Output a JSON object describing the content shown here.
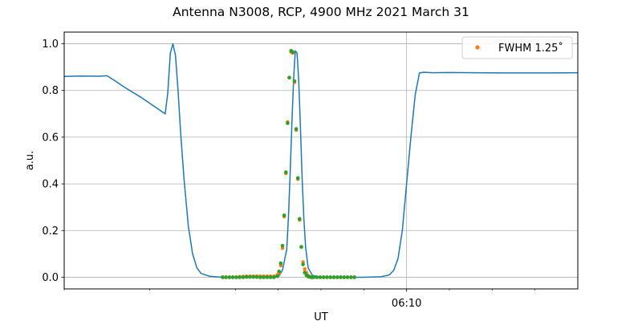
{
  "chart_data": {
    "type": "line",
    "title": "Antenna N3008, RCP, 4900 MHz 2021 March 31",
    "xlabel": "UT",
    "ylabel": "a.u.",
    "xlim": [
      0,
      600
    ],
    "ylim": [
      -0.05,
      1.05
    ],
    "x_unit": "seconds (UT)",
    "x_major_ticks": [
      {
        "value": 400,
        "label": "06:10"
      }
    ],
    "x_minor_ticks": [
      0,
      100,
      200,
      250,
      300,
      350,
      450,
      500,
      550
    ],
    "y_ticks": [
      0.0,
      0.2,
      0.4,
      0.6,
      0.8,
      1.0
    ],
    "y_tick_labels": [
      "0.0",
      "0.2",
      "0.4",
      "0.6",
      "0.8",
      "1.0"
    ],
    "grid": true,
    "legend_position": "top-right",
    "colors": {
      "line": "#1f77b4",
      "fit": "#ff7f0e",
      "samples": "#2ca02c"
    },
    "series": [
      {
        "kind": "line",
        "x": [
          0,
          20,
          40,
          50,
          60,
          70,
          80,
          90,
          100,
          110,
          118,
          121,
          124,
          127,
          130,
          133,
          136,
          140,
          145,
          150,
          155,
          160,
          170,
          180,
          195,
          220,
          250,
          255,
          260,
          262,
          264,
          266,
          268,
          270,
          272,
          274,
          276,
          278,
          280,
          282,
          285,
          290,
          300,
          320,
          350,
          370,
          380,
          385,
          390,
          395,
          400,
          405,
          410,
          415,
          420,
          430,
          450,
          480,
          510,
          540,
          570,
          600
        ],
        "y": [
          0.86,
          0.862,
          0.861,
          0.863,
          0.84,
          0.815,
          0.792,
          0.77,
          0.745,
          0.72,
          0.7,
          0.79,
          0.96,
          1.0,
          0.95,
          0.8,
          0.62,
          0.42,
          0.22,
          0.1,
          0.04,
          0.016,
          0.004,
          0.001,
          0.0,
          0.0,
          0.0,
          0.03,
          0.12,
          0.26,
          0.45,
          0.66,
          0.85,
          0.97,
          0.96,
          0.84,
          0.64,
          0.42,
          0.25,
          0.13,
          0.04,
          0.008,
          0.0,
          0.0,
          0.0,
          0.002,
          0.01,
          0.03,
          0.08,
          0.2,
          0.4,
          0.6,
          0.78,
          0.875,
          0.878,
          0.876,
          0.877,
          0.876,
          0.875,
          0.875,
          0.875,
          0.876
        ]
      },
      {
        "name": "FWHM 1.25$^\\circ$",
        "legend_label": "FWHM 1.25˚",
        "kind": "scatter",
        "x": [
          185,
          189,
          193,
          197,
          201,
          205,
          209,
          213,
          217,
          221,
          225,
          229,
          233,
          237,
          241,
          245,
          249,
          251,
          253,
          255,
          257,
          259,
          261,
          263,
          265,
          267,
          269,
          271,
          273,
          275,
          277,
          279,
          281,
          283,
          285,
          287,
          289,
          291,
          295,
          299,
          303,
          307,
          311,
          315,
          319,
          323,
          327,
          331,
          335,
          339
        ],
        "y": [
          0.0,
          0.0,
          0.0,
          0.0,
          0.0,
          0.002,
          0.003,
          0.004,
          0.004,
          0.004,
          0.004,
          0.004,
          0.004,
          0.004,
          0.004,
          0.004,
          0.01,
          0.02,
          0.05,
          0.125,
          0.26,
          0.445,
          0.665,
          0.855,
          0.965,
          0.96,
          0.835,
          0.63,
          0.42,
          0.245,
          0.13,
          0.065,
          0.035,
          0.02,
          0.008,
          0.002,
          0.0,
          0.0,
          0.0,
          0.0,
          0.0,
          0.0,
          0.0,
          0.0,
          0.0,
          0.0,
          0.0,
          0.0,
          0.0,
          0.0
        ]
      },
      {
        "kind": "scatter",
        "x": [
          185,
          189,
          193,
          197,
          201,
          205,
          209,
          213,
          217,
          221,
          225,
          229,
          233,
          237,
          241,
          245,
          249,
          251,
          253,
          255,
          257,
          259,
          261,
          263,
          265,
          267,
          269,
          271,
          273,
          275,
          277,
          279,
          281,
          283,
          285,
          287,
          289,
          291,
          295,
          299,
          303,
          307,
          311,
          315,
          319,
          323,
          327,
          331,
          335,
          339
        ],
        "y": [
          0.0,
          0.0,
          0.0,
          0.0,
          0.0,
          0.0,
          0.0,
          0.001,
          0.001,
          0.001,
          0.001,
          0.0,
          0.0,
          0.0,
          0.0,
          0.0,
          0.005,
          0.025,
          0.06,
          0.135,
          0.265,
          0.45,
          0.66,
          0.855,
          0.97,
          0.965,
          0.84,
          0.635,
          0.425,
          0.25,
          0.13,
          0.055,
          0.02,
          0.008,
          0.003,
          0.001,
          0.0,
          0.0,
          0.0,
          0.0,
          0.0,
          0.0,
          0.0,
          0.0,
          0.0,
          0.0,
          0.0,
          0.0,
          0.0,
          0.0
        ]
      }
    ]
  }
}
